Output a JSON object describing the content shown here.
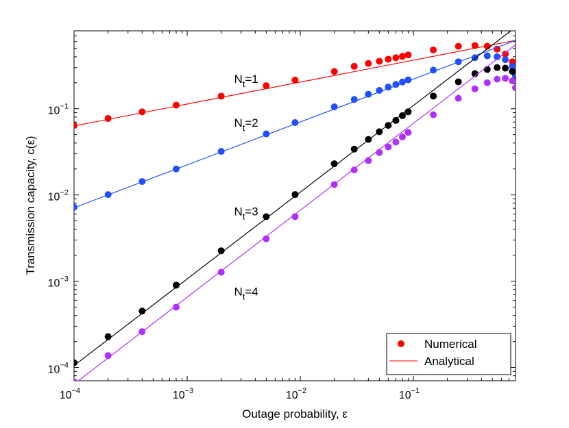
{
  "chart_data": {
    "type": "scatter",
    "xscale": "log",
    "yscale": "log",
    "xlabel": "Outage probability, ε",
    "ylabel": "Transmission capacity, c(ε)",
    "xlim": [
      0.0001,
      0.8
    ],
    "ylim": [
      7e-05,
      0.8
    ],
    "x_ticks": [
      {
        "value": 0.0001,
        "base": "10",
        "exp": "−4"
      },
      {
        "value": 0.001,
        "base": "10",
        "exp": "−3"
      },
      {
        "value": 0.01,
        "base": "10",
        "exp": "−2"
      },
      {
        "value": 0.1,
        "base": "10",
        "exp": "−1"
      }
    ],
    "y_ticks": [
      {
        "value": 0.0001,
        "base": "10",
        "exp": "−4"
      },
      {
        "value": 0.001,
        "base": "10",
        "exp": "−3"
      },
      {
        "value": 0.01,
        "base": "10",
        "exp": "−2"
      },
      {
        "value": 0.1,
        "base": "10",
        "exp": "−1"
      }
    ],
    "legend": {
      "location": "bottom-right",
      "entries": [
        {
          "label": "Numerical",
          "marker": "dot",
          "color": "#ff0000"
        },
        {
          "label": "Analytical",
          "marker": "line",
          "color": "#ff0000"
        }
      ]
    },
    "series": [
      {
        "name": "N_t=1",
        "label_main": "N",
        "label_sub": "t",
        "label_rest": "=1",
        "color": "#ff0000",
        "label_x": 0.0026,
        "label_y": 0.2,
        "analytical": {
          "x": [
            0.0001,
            0.8
          ],
          "y": [
            0.063,
            0.62
          ]
        },
        "numerical": {
          "x": [
            0.0001,
            0.0002,
            0.0004,
            0.0008,
            0.002,
            0.005,
            0.009,
            0.02,
            0.03,
            0.04,
            0.05,
            0.06,
            0.07,
            0.08,
            0.09,
            0.15,
            0.25,
            0.35,
            0.45,
            0.55,
            0.65,
            0.75,
            0.8
          ],
          "y": [
            0.064,
            0.077,
            0.092,
            0.11,
            0.14,
            0.185,
            0.215,
            0.27,
            0.31,
            0.335,
            0.355,
            0.375,
            0.39,
            0.405,
            0.42,
            0.48,
            0.53,
            0.54,
            0.53,
            0.49,
            0.43,
            0.35,
            0.25
          ]
        }
      },
      {
        "name": "N_t=2",
        "label_main": "N",
        "label_sub": "t",
        "label_rest": "=2",
        "color": "#2050ff",
        "label_x": 0.0026,
        "label_y": 0.062,
        "analytical": {
          "x": [
            0.0001,
            0.8
          ],
          "y": [
            0.0071,
            0.62
          ]
        },
        "numerical": {
          "x": [
            0.0001,
            0.0002,
            0.0004,
            0.0008,
            0.002,
            0.005,
            0.009,
            0.02,
            0.03,
            0.04,
            0.05,
            0.06,
            0.07,
            0.08,
            0.09,
            0.15,
            0.25,
            0.35,
            0.45,
            0.55,
            0.65,
            0.75,
            0.8
          ],
          "y": [
            0.0072,
            0.0101,
            0.0143,
            0.02,
            0.032,
            0.051,
            0.069,
            0.105,
            0.128,
            0.147,
            0.163,
            0.178,
            0.191,
            0.204,
            0.216,
            0.28,
            0.35,
            0.39,
            0.41,
            0.4,
            0.37,
            0.31,
            0.24
          ]
        }
      },
      {
        "name": "N_t=3",
        "label_main": "N",
        "label_sub": "t",
        "label_rest": "=3",
        "color": "#000000",
        "label_x": 0.0026,
        "label_y": 0.0058,
        "analytical": {
          "x": [
            0.0001,
            0.8
          ],
          "y": [
            0.000105,
            0.88
          ]
        },
        "numerical": {
          "x": [
            0.0001,
            0.0002,
            0.0004,
            0.0008,
            0.002,
            0.005,
            0.009,
            0.02,
            0.03,
            0.04,
            0.05,
            0.06,
            0.07,
            0.08,
            0.09,
            0.15,
            0.25,
            0.35,
            0.45,
            0.55,
            0.65,
            0.75,
            0.8
          ],
          "y": [
            0.000113,
            0.000227,
            0.00045,
            0.0009,
            0.00225,
            0.0056,
            0.0101,
            0.023,
            0.034,
            0.044,
            0.054,
            0.064,
            0.073,
            0.083,
            0.092,
            0.14,
            0.205,
            0.255,
            0.285,
            0.3,
            0.295,
            0.27,
            0.21
          ]
        }
      },
      {
        "name": "N_t=4",
        "label_main": "N",
        "label_sub": "t",
        "label_rest": "=4",
        "color": "#b030ff",
        "label_x": 0.0026,
        "label_y": 0.00068,
        "analytical": {
          "x": [
            0.0001,
            0.8
          ],
          "y": [
            6.4e-05,
            0.55
          ]
        },
        "numerical": {
          "x": [
            0.0001,
            0.0002,
            0.0004,
            0.0008,
            0.002,
            0.005,
            0.009,
            0.02,
            0.03,
            0.04,
            0.05,
            0.06,
            0.07,
            0.08,
            0.09,
            0.15,
            0.25,
            0.35,
            0.45,
            0.55,
            0.65,
            0.75,
            0.8
          ],
          "y": [
            6.8e-05,
            0.000137,
            0.00026,
            0.0005,
            0.00127,
            0.0031,
            0.0056,
            0.0132,
            0.0195,
            0.025,
            0.031,
            0.036,
            0.041,
            0.047,
            0.053,
            0.085,
            0.132,
            0.17,
            0.2,
            0.22,
            0.225,
            0.21,
            0.175
          ]
        }
      }
    ]
  }
}
